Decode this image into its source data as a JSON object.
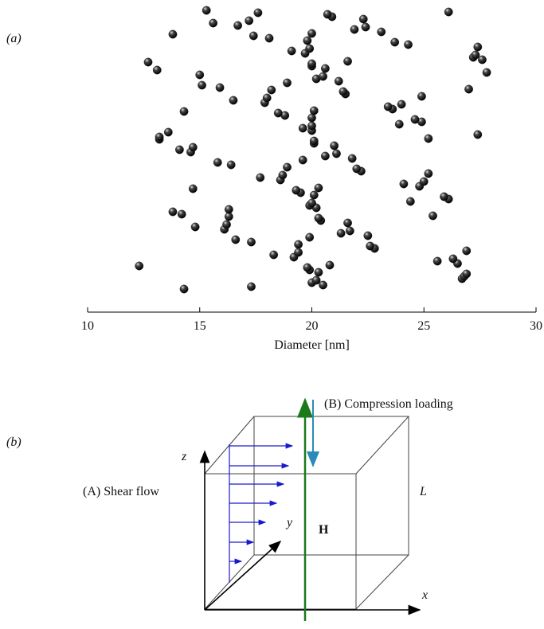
{
  "chart_data": {
    "type": "scatter",
    "xlabel": "Diameter [nm]",
    "xlim": [
      10,
      30
    ],
    "xticks": [
      10,
      15,
      20,
      25,
      30
    ],
    "color": "#1a1a1a",
    "x": [
      13.8,
      14.3,
      14.7,
      12.3,
      12.7,
      13.2,
      16.3,
      17.6,
      18.2,
      18.9,
      19.4,
      19.8,
      20.0,
      20.1,
      20.3,
      20.6,
      21.0,
      21.6,
      22.3,
      24.9,
      25.2,
      26.9,
      27.4,
      23.9,
      24.4,
      26.7,
      15.0,
      14.6,
      16.1,
      16.7,
      17.9,
      18.6,
      19.2,
      19.7,
      20.0,
      20.2,
      20.5,
      21.2,
      21.8,
      22.5,
      23.1,
      23.6,
      24.8,
      26.5,
      27.6,
      13.2,
      14.2,
      15.3,
      15.9,
      16.4,
      17.3,
      18.1,
      18.8,
      19.5,
      19.9,
      20.0,
      20.1,
      20.4,
      20.9,
      21.5,
      22.2,
      22.8,
      24.3,
      24.9,
      26.1,
      26.8,
      27.8,
      14.1,
      14.8,
      15.6,
      16.5,
      17.7,
      18.3,
      19.1,
      19.6,
      19.9,
      20.0,
      20.2,
      20.6,
      21.3,
      21.9,
      23.4,
      24.1,
      25.6,
      27.2,
      27.4,
      13.8,
      14.3,
      15.1,
      15.8,
      16.6,
      17.4,
      18.5,
      19.3,
      19.8,
      20.0,
      20.1,
      20.3,
      20.7,
      21.4,
      22.0,
      22.6,
      23.7,
      24.6,
      25.9,
      26.9,
      13.1,
      14.7,
      16.2,
      17.2,
      18.0,
      18.7,
      19.4,
      19.9,
      20.0,
      20.0,
      20.2,
      20.5,
      21.1,
      21.7,
      22.4,
      24.0,
      25.0,
      26.3,
      27.3,
      13.6,
      16.3,
      17.3,
      18.9,
      19.6,
      19.9,
      20.0,
      20.1,
      20.3,
      20.8,
      21.6,
      25.2,
      25.4,
      26.1,
      27.0
    ]
  },
  "panel_labels": [
    "(a)",
    "(b)"
  ],
  "diagram": {
    "axis_z": "z",
    "axis_y": "y",
    "axis_x": "x",
    "field": "H",
    "length": "L",
    "shear": "(A) Shear flow",
    "compression": "(B) Compression loading"
  }
}
